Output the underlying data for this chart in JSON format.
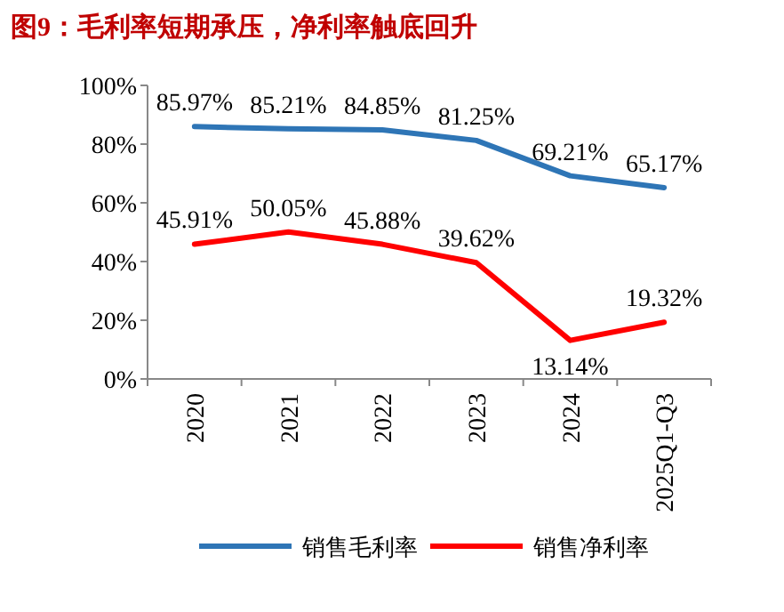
{
  "chart_data": {
    "type": "line",
    "title": "图9：毛利率短期承压，净利率触底回升",
    "categories": [
      "2020",
      "2021",
      "2022",
      "2023",
      "2024",
      "2025Q1-Q3"
    ],
    "series": [
      {
        "name": "销售毛利率",
        "color": "#2e75b6",
        "values": [
          85.97,
          85.21,
          84.85,
          81.25,
          69.21,
          65.17
        ],
        "value_labels": [
          "85.97%",
          "85.21%",
          "84.85%",
          "81.25%",
          "69.21%",
          "65.17%"
        ]
      },
      {
        "name": "销售净利率",
        "color": "#ff0000",
        "values": [
          45.91,
          50.05,
          45.88,
          39.62,
          13.14,
          19.32
        ],
        "value_labels": [
          "45.91%",
          "50.05%",
          "45.88%",
          "39.62%",
          "13.14%",
          "19.32%"
        ]
      }
    ],
    "ylim": [
      0,
      100
    ],
    "yticks": [
      {
        "value": 0,
        "label": "0%"
      },
      {
        "value": 20,
        "label": "20%"
      },
      {
        "value": 40,
        "label": "40%"
      },
      {
        "value": 60,
        "label": "60%"
      },
      {
        "value": 80,
        "label": "80%"
      },
      {
        "value": 100,
        "label": "100%"
      }
    ],
    "legend": "bottom",
    "grid": false,
    "marker": "none",
    "line_style": "solid"
  }
}
